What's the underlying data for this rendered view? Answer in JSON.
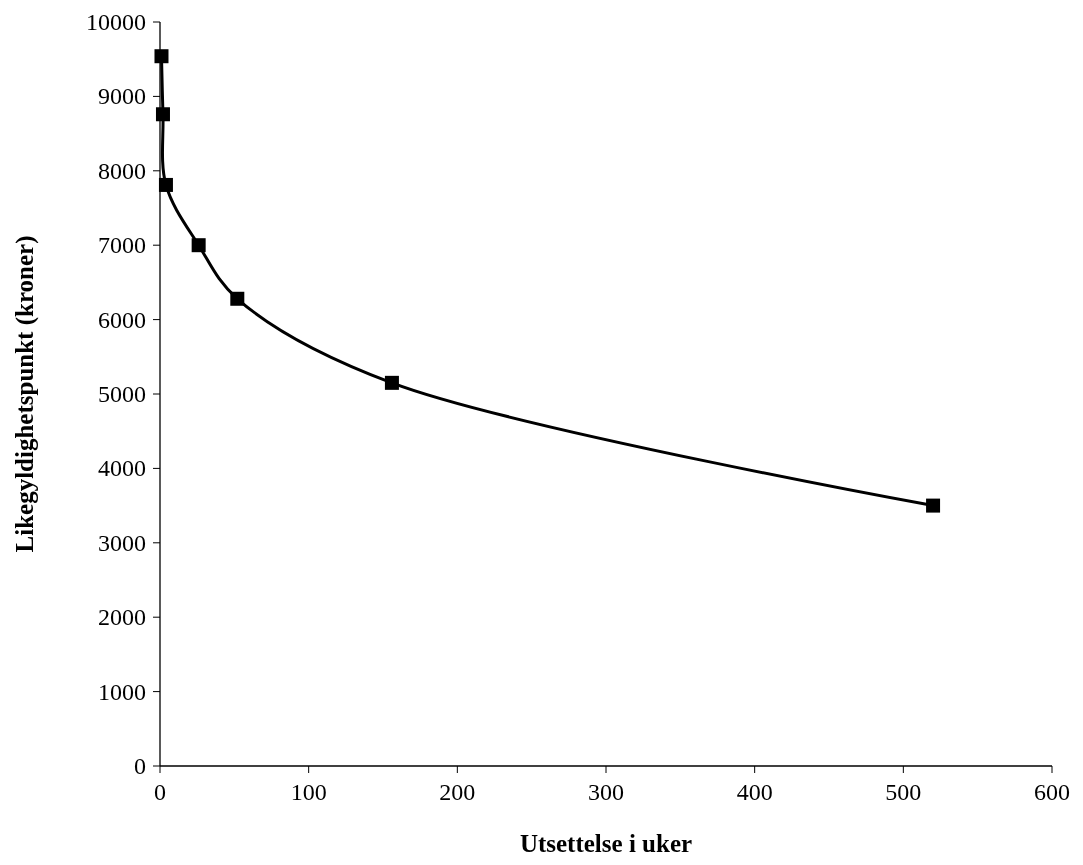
{
  "chart_data": {
    "type": "line",
    "xlabel": "Utsettelse i uker",
    "ylabel": "Likegyldighetspunkt (kroner)",
    "x": [
      1,
      2,
      4,
      26,
      52,
      156,
      520
    ],
    "series": [
      {
        "color": "#000000",
        "values": [
          9540,
          8760,
          7810,
          7000,
          6280,
          5150,
          3500
        ]
      }
    ],
    "xlim": [
      0,
      600
    ],
    "xticks": [
      0,
      100,
      200,
      300,
      400,
      500,
      600
    ],
    "ylim": [
      0,
      10000
    ],
    "yticks": [
      0,
      1000,
      2000,
      3000,
      4000,
      5000,
      6000,
      7000,
      8000,
      9000,
      10000
    ],
    "grid": false,
    "marker": "square",
    "line_style": "solid"
  }
}
